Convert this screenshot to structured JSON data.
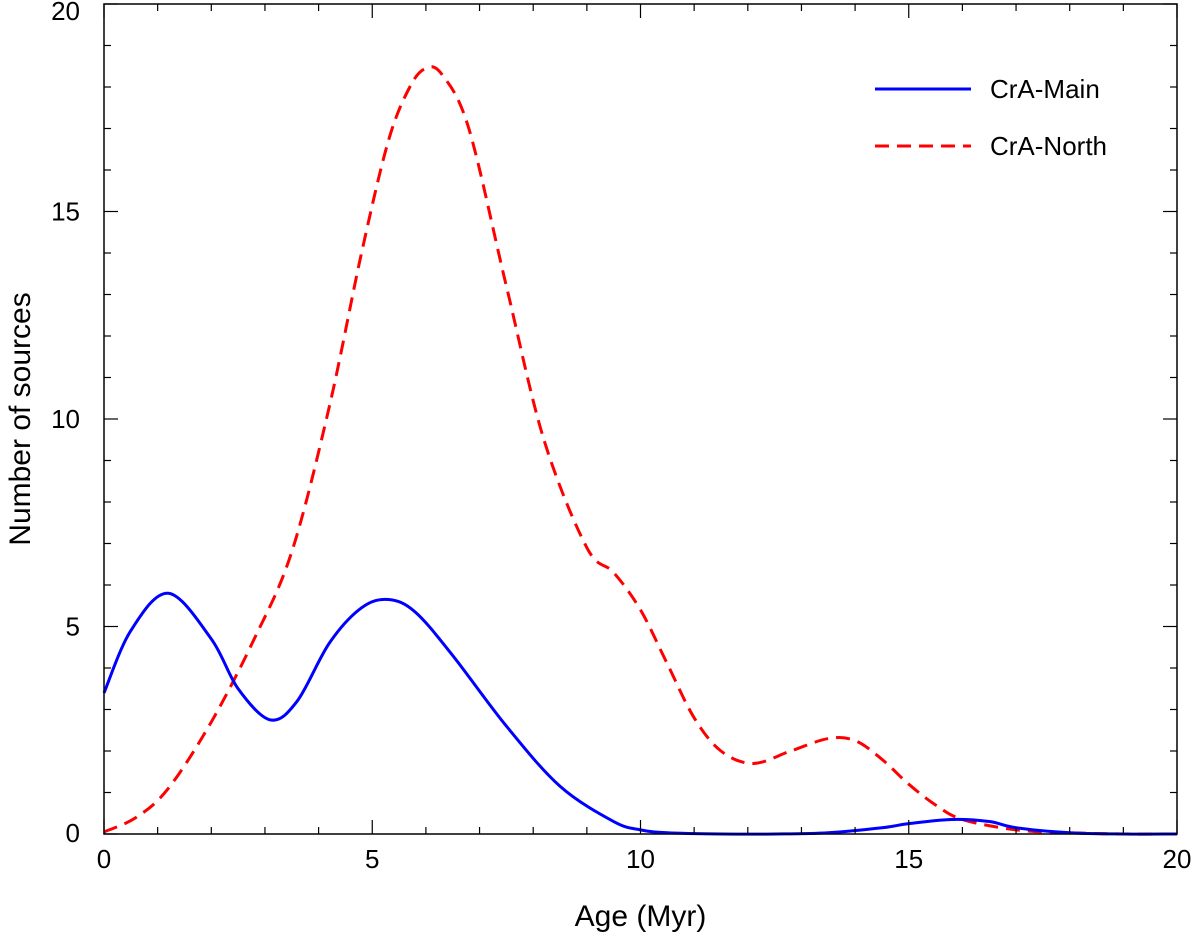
{
  "chart_data": {
    "type": "line",
    "title": "",
    "xlabel": "Age (Myr)",
    "ylabel": "Number of sources",
    "xlim": [
      0,
      20
    ],
    "ylim": [
      0,
      20
    ],
    "xticks": [
      0,
      5,
      10,
      15,
      20
    ],
    "yticks": [
      0,
      5,
      10,
      15,
      20
    ],
    "xtick_labels": [
      "0",
      "5",
      "10",
      "15",
      "20"
    ],
    "ytick_labels": [
      "0",
      "5",
      "10",
      "15",
      "20"
    ],
    "grid": false,
    "legend_position": "top-right",
    "series": [
      {
        "name": "CrA-Main",
        "color": "#0000ff",
        "style": "solid",
        "x": [
          0,
          0.5,
          1.2,
          2,
          2.5,
          3.1,
          3.6,
          4.2,
          4.8,
          5.3,
          5.8,
          6.5,
          7.5,
          8.5,
          9.5,
          10,
          10.5,
          11.5,
          12.5,
          13.5,
          14.5,
          15,
          15.8,
          16.5,
          17,
          18,
          19,
          20
        ],
        "values": [
          3.4,
          4.9,
          5.8,
          4.7,
          3.5,
          2.75,
          3.2,
          4.6,
          5.45,
          5.65,
          5.35,
          4.3,
          2.6,
          1.15,
          0.3,
          0.1,
          0.03,
          0.0,
          0.0,
          0.03,
          0.15,
          0.25,
          0.35,
          0.3,
          0.15,
          0.03,
          0.0,
          0.0
        ]
      },
      {
        "name": "CrA-North",
        "color": "#ff0000",
        "style": "dashed",
        "x": [
          0,
          0.6,
          1.2,
          2,
          2.8,
          3.5,
          4.2,
          4.8,
          5.3,
          5.7,
          6,
          6.3,
          6.8,
          7.5,
          8.2,
          9,
          9.5,
          10,
          10.5,
          11,
          11.5,
          12.1,
          12.8,
          13.5,
          14,
          14.5,
          15,
          15.5,
          16,
          17,
          18,
          19,
          20
        ],
        "values": [
          0.05,
          0.4,
          1.1,
          2.7,
          4.7,
          6.8,
          10.3,
          14.0,
          16.7,
          18.0,
          18.45,
          18.3,
          17.0,
          13.2,
          9.5,
          6.9,
          6.3,
          5.4,
          4.1,
          2.8,
          2.0,
          1.7,
          2.0,
          2.3,
          2.25,
          1.8,
          1.2,
          0.7,
          0.35,
          0.1,
          0.03,
          0.0,
          0.0
        ]
      }
    ]
  }
}
